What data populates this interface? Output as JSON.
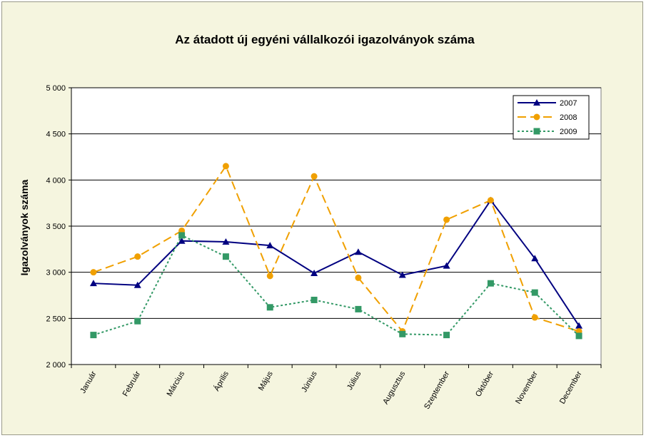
{
  "chart_data": {
    "type": "line",
    "title": "Az átadott új egyéni vállalkozói  igazolványok száma",
    "xlabel": "",
    "ylabel": "Igazolványok száma",
    "categories": [
      "Január",
      "Február",
      "Március",
      "Április",
      "Május",
      "Június",
      "Július",
      "Augusztus",
      "Szeptember",
      "Október",
      "November",
      "December"
    ],
    "ylim": [
      2000,
      5000
    ],
    "yticks": [
      2000,
      2500,
      3000,
      3500,
      4000,
      4500,
      5000
    ],
    "ytick_labels": [
      "2 000",
      "2 500",
      "3 000",
      "3 500",
      "4 000",
      "4 500",
      "5 000"
    ],
    "grid": true,
    "legend_position": "top-right",
    "series": [
      {
        "name": "2007",
        "color": "#000080",
        "marker": "triangle",
        "dash": "solid",
        "values": [
          2880,
          2860,
          3340,
          3330,
          3290,
          2990,
          3220,
          2970,
          3070,
          3780,
          3150,
          2420
        ]
      },
      {
        "name": "2008",
        "color": "#f0a000",
        "marker": "circle",
        "dash": "dashed",
        "values": [
          3000,
          3170,
          3450,
          4150,
          2960,
          4040,
          2940,
          2360,
          3570,
          3780,
          2510,
          2360
        ]
      },
      {
        "name": "2009",
        "color": "#339966",
        "marker": "square",
        "dash": "dotted",
        "values": [
          2320,
          2470,
          3400,
          3170,
          2620,
          2700,
          2600,
          2330,
          2320,
          2880,
          2780,
          2310
        ]
      }
    ]
  }
}
